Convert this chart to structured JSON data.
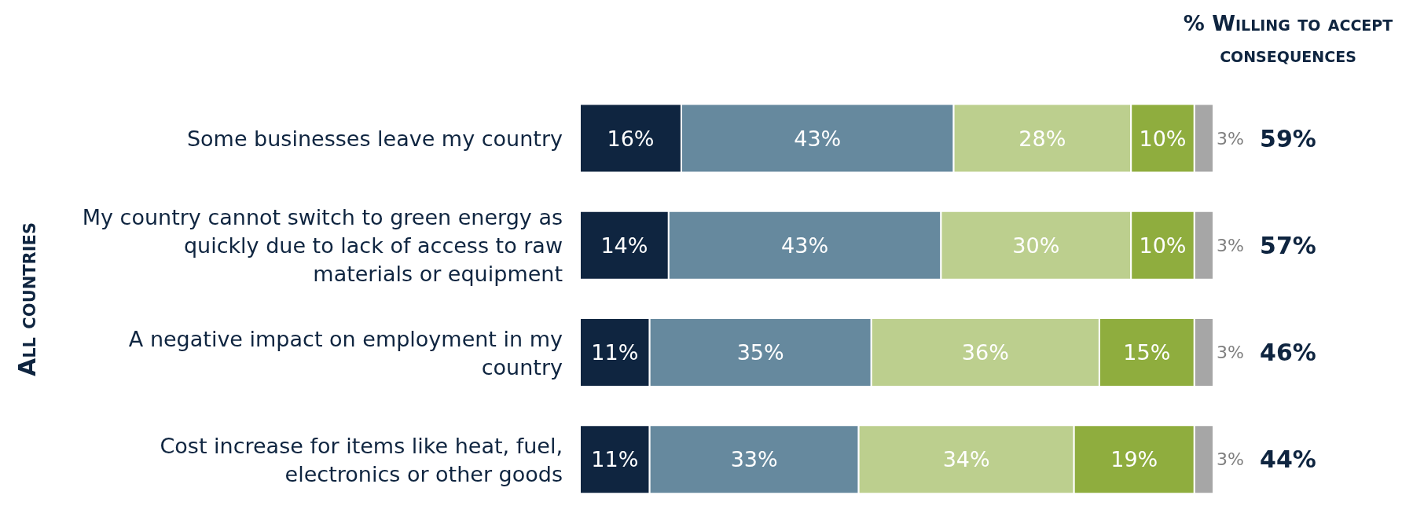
{
  "chart_data": {
    "type": "bar",
    "orientation": "horizontal",
    "stacked": true,
    "ylabel": "All countries",
    "annotations": [
      "% Willing to accept consequences",
      "59%",
      "57%",
      "46%",
      "44%"
    ],
    "categories": [
      "Some businesses leave my country",
      "My country cannot switch to green energy as quickly due to lack of access to raw materials or equipment",
      "A negative impact on employment in my country",
      "Cost increase for items like heat, fuel, electronics or other goods"
    ],
    "series": [
      {
        "color": "#0f2540",
        "values": [
          16,
          14,
          11,
          11
        ],
        "value_labels": [
          "16%",
          "14%",
          "11%",
          "11%"
        ]
      },
      {
        "color": "#66899e",
        "values": [
          43,
          43,
          35,
          33
        ],
        "value_labels": [
          "43%",
          "43%",
          "35%",
          "33%"
        ]
      },
      {
        "color": "#bccf8e",
        "values": [
          28,
          30,
          36,
          34
        ],
        "value_labels": [
          "28%",
          "30%",
          "36%",
          "34%"
        ]
      },
      {
        "color": "#8fad3e",
        "values": [
          10,
          10,
          15,
          19
        ],
        "value_labels": [
          "10%",
          "10%",
          "15%",
          "19%"
        ]
      },
      {
        "color": "#a6a6a6",
        "values": [
          3,
          3,
          3,
          3
        ],
        "value_labels": [
          "3%",
          "3%",
          "3%",
          "3%"
        ]
      }
    ],
    "tick_labels": "y"
  }
}
